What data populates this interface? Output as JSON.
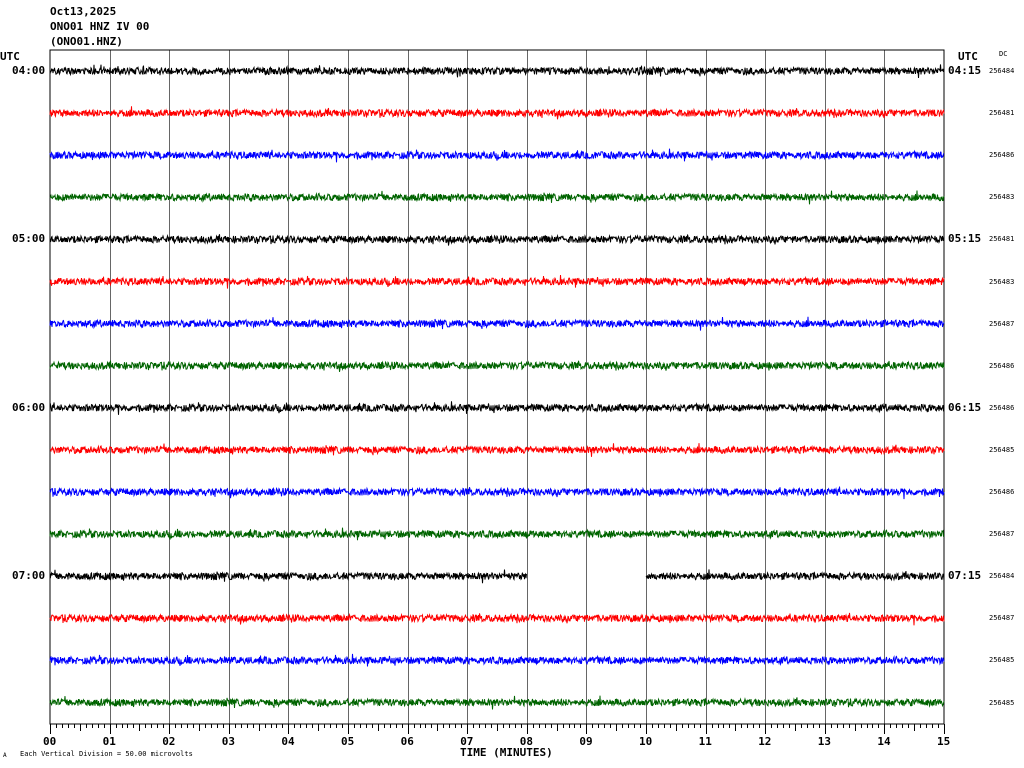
{
  "header": {
    "date": "Oct13,2025",
    "station": "ONO01 HNZ IV 00",
    "channel": "(ONO01.HNZ)"
  },
  "labels": {
    "utc_left": "UTC",
    "utc_right": "UTC",
    "dc": "DC",
    "xlabel": "TIME (MINUTES)",
    "footer_mark": "A",
    "footer_scale": "Each Vertical Division =   50.00 microvolts"
  },
  "chart_data": {
    "type": "line",
    "title": "ONO01 HNZ IV 00",
    "xlabel": "TIME (MINUTES)",
    "x_ticks": [
      "00",
      "01",
      "02",
      "03",
      "04",
      "05",
      "06",
      "07",
      "08",
      "09",
      "10",
      "11",
      "12",
      "13",
      "14",
      "15"
    ],
    "xlim": [
      0,
      15
    ],
    "left_time_labels": [
      {
        "row": 0,
        "text": "04:00"
      },
      {
        "row": 4,
        "text": "05:00"
      },
      {
        "row": 8,
        "text": "06:00"
      },
      {
        "row": 12,
        "text": "07:00"
      }
    ],
    "right_time_labels": [
      {
        "row": 0,
        "text": "04:15"
      },
      {
        "row": 4,
        "text": "05:15"
      },
      {
        "row": 8,
        "text": "06:15"
      },
      {
        "row": 12,
        "text": "07:15"
      }
    ],
    "dc_values": [
      "256484",
      "256481",
      "256486",
      "256483",
      "256481",
      "256483",
      "256487",
      "256486",
      "256486",
      "256485",
      "256486",
      "256487",
      "256484",
      "256487",
      "256485",
      "256485"
    ],
    "trace_colors": [
      "#000000",
      "#ff0000",
      "#0000ff",
      "#006400"
    ],
    "gaps": [
      {
        "row": 12,
        "from_min": 8.0,
        "to_min": 10.0
      }
    ],
    "vertical_division": "50.00 microvolts"
  }
}
